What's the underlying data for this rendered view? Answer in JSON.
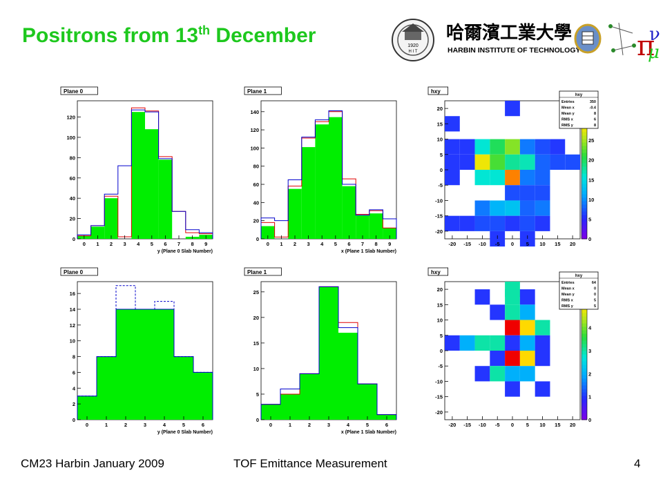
{
  "slide": {
    "title_main": "Positrons from 13",
    "title_sup": "th",
    "title_tail": " December",
    "institution_text": "HARBIN INSTITUTE OF TECHNOLOGY",
    "institution_chinese": "哈爾濱工業大學",
    "seal_year": "1920",
    "seal_text": "H I T",
    "footer_left": "CM23 Harbin January 2009",
    "footer_center": "TOF Emittance Measurement",
    "page_number": "4"
  },
  "colors": {
    "title_green": "#1ec81e",
    "fill_green": "#00ee00",
    "hist_red": "#e00000",
    "hist_blue": "#0000cc"
  },
  "chart_data": [
    {
      "type": "bar",
      "label": "Plane 0",
      "xlabel": "y (Plane 0 Slab Number)",
      "xlim": [
        -0.5,
        9.5
      ],
      "ylim": [
        0,
        136
      ],
      "xticks": [
        "0",
        "1",
        "2",
        "3",
        "4",
        "5",
        "6",
        "7",
        "8",
        "9"
      ],
      "yticks": [
        0,
        20,
        40,
        60,
        80,
        100,
        120
      ],
      "categories": [
        0,
        1,
        2,
        3,
        4,
        5,
        6,
        7,
        8,
        9
      ],
      "series": [
        {
          "style": "fill",
          "values": [
            3,
            12,
            40,
            0,
            125,
            108,
            78,
            0,
            2,
            4
          ]
        },
        {
          "style": "red",
          "values": [
            3,
            13,
            42,
            2,
            129,
            126,
            81,
            27,
            6,
            5
          ]
        },
        {
          "style": "blue",
          "values": [
            4,
            13,
            44,
            72,
            127,
            125,
            79,
            27,
            9,
            6
          ]
        }
      ]
    },
    {
      "type": "bar",
      "label": "Plane 1",
      "xlabel": "x (Plane 1 Slab Number)",
      "xlim": [
        -0.5,
        9.5
      ],
      "ylim": [
        0,
        152
      ],
      "xticks": [
        "0",
        "1",
        "2",
        "3",
        "4",
        "5",
        "6",
        "7",
        "8",
        "9"
      ],
      "yticks": [
        0,
        20,
        40,
        60,
        80,
        100,
        120,
        140
      ],
      "categories": [
        0,
        1,
        2,
        3,
        4,
        5,
        6,
        7,
        8,
        9
      ],
      "series": [
        {
          "style": "fill",
          "values": [
            14,
            0,
            55,
            101,
            126,
            134,
            58,
            26,
            28,
            12
          ]
        },
        {
          "style": "red",
          "values": [
            18,
            2,
            58,
            111,
            129,
            140,
            66,
            27,
            31,
            12
          ]
        },
        {
          "style": "blue",
          "values": [
            23,
            20,
            65,
            112,
            131,
            141,
            60,
            26,
            32,
            22
          ]
        }
      ]
    },
    {
      "type": "heatmap",
      "label": "hxy",
      "stats_title": "hxy",
      "stats": [
        [
          "Entries",
          "350"
        ],
        [
          "Mean x",
          "-0.4"
        ],
        [
          "Mean y",
          "8"
        ],
        [
          "RMS x",
          "6"
        ],
        [
          "RMS y",
          "8"
        ]
      ],
      "xlim": [
        -22.5,
        22.5
      ],
      "ylim": [
        -22.5,
        22.5
      ],
      "xticks": [
        -20,
        -15,
        -10,
        -5,
        0,
        5,
        10,
        15,
        20
      ],
      "yticks": [
        -20,
        -15,
        -10,
        -5,
        0,
        5,
        10,
        15,
        20
      ],
      "zmax": 35,
      "zticks": [
        0,
        5,
        10,
        15,
        20,
        25,
        30,
        35
      ],
      "cells": [
        [
          0,
          20,
          6
        ],
        [
          -20,
          15,
          6
        ],
        [
          -20,
          7.5,
          6
        ],
        [
          -15,
          7.5,
          6
        ],
        [
          -10,
          7.5,
          16
        ],
        [
          -5,
          7.5,
          20
        ],
        [
          0,
          7.5,
          24
        ],
        [
          5,
          7.5,
          9
        ],
        [
          10,
          7.5,
          7
        ],
        [
          15,
          7.5,
          6
        ],
        [
          -20,
          2.5,
          6
        ],
        [
          -15,
          2.5,
          6
        ],
        [
          -10,
          2.5,
          28
        ],
        [
          -5,
          2.5,
          22
        ],
        [
          0,
          2.5,
          18
        ],
        [
          5,
          2.5,
          17
        ],
        [
          10,
          2.5,
          8
        ],
        [
          15,
          2.5,
          7
        ],
        [
          20,
          2.5,
          7
        ],
        [
          -20,
          -2.5,
          6
        ],
        [
          -10,
          -2.5,
          16
        ],
        [
          -5,
          -2.5,
          16
        ],
        [
          0,
          -2.5,
          32
        ],
        [
          5,
          -2.5,
          9
        ],
        [
          10,
          -2.5,
          8
        ],
        [
          0,
          -7.5,
          7
        ],
        [
          5,
          -7.5,
          7
        ],
        [
          10,
          -7.5,
          7
        ],
        [
          -10,
          -12.5,
          9
        ],
        [
          -5,
          -12.5,
          12
        ],
        [
          0,
          -12.5,
          13
        ],
        [
          5,
          -12.5,
          8
        ],
        [
          10,
          -12.5,
          9
        ],
        [
          -20,
          -17.5,
          6
        ],
        [
          -15,
          -17.5,
          6
        ],
        [
          -10,
          -17.5,
          7
        ],
        [
          -5,
          -17.5,
          7
        ],
        [
          0,
          -17.5,
          6
        ],
        [
          5,
          -17.5,
          7
        ],
        [
          10,
          -17.5,
          6
        ],
        [
          -5,
          -22.5,
          6
        ],
        [
          5,
          -22.5,
          6
        ]
      ]
    },
    {
      "type": "bar",
      "label": "Plane 0",
      "xlabel": "y (Plane 0 Slab Number)",
      "xlim": [
        -0.5,
        6.5
      ],
      "ylim": [
        0,
        17.5
      ],
      "xticks": [
        "0",
        "1",
        "2",
        "3",
        "4",
        "5",
        "6"
      ],
      "yticks": [
        0,
        2,
        4,
        6,
        8,
        10,
        12,
        14,
        16
      ],
      "categories": [
        0,
        1,
        2,
        3,
        4,
        5,
        6
      ],
      "series": [
        {
          "style": "fill",
          "values": [
            3,
            8,
            14,
            14,
            14,
            8,
            6
          ]
        },
        {
          "style": "blue",
          "values": [
            3,
            8,
            14,
            14,
            14,
            8,
            6
          ]
        },
        {
          "style": "dash",
          "values": [
            3,
            8,
            17,
            14,
            15,
            8,
            6
          ]
        }
      ]
    },
    {
      "type": "bar",
      "label": "Plane 1",
      "xlabel": "x (Plane 1 Slab Number)",
      "xlim": [
        -0.5,
        6.5
      ],
      "ylim": [
        0,
        27
      ],
      "xticks": [
        "0",
        "1",
        "2",
        "3",
        "4",
        "5",
        "6"
      ],
      "yticks": [
        0,
        5,
        10,
        15,
        20,
        25
      ],
      "categories": [
        0,
        1,
        2,
        3,
        4,
        5,
        6
      ],
      "series": [
        {
          "style": "fill",
          "values": [
            3,
            5,
            9,
            26,
            17,
            7,
            1
          ]
        },
        {
          "style": "red",
          "values": [
            3,
            5,
            9,
            26,
            19,
            7,
            1
          ]
        },
        {
          "style": "blue",
          "values": [
            3,
            6,
            9,
            26,
            18,
            7,
            1
          ]
        }
      ]
    },
    {
      "type": "heatmap",
      "label": "hxy",
      "stats_title": "hxy",
      "stats": [
        [
          "Entries",
          "64"
        ],
        [
          "Mean x",
          "0"
        ],
        [
          "Mean y",
          "0"
        ],
        [
          "RMS x",
          "5"
        ],
        [
          "RMS y",
          "5"
        ]
      ],
      "xlim": [
        -22.5,
        22.5
      ],
      "ylim": [
        -22.5,
        22.5
      ],
      "xticks": [
        -20,
        -15,
        -10,
        -5,
        0,
        5,
        10,
        15,
        20
      ],
      "yticks": [
        -20,
        -15,
        -10,
        -5,
        0,
        5,
        10,
        15,
        20
      ],
      "zmax": 6,
      "zticks": [
        0,
        1,
        2,
        3,
        4,
        5,
        6
      ],
      "cells": [
        [
          0,
          20,
          3
        ],
        [
          -10,
          17.5,
          1
        ],
        [
          0,
          17.5,
          3
        ],
        [
          5,
          17.5,
          1
        ],
        [
          -5,
          12.5,
          1
        ],
        [
          0,
          12.5,
          3
        ],
        [
          5,
          12.5,
          2
        ],
        [
          0,
          7.5,
          6
        ],
        [
          5,
          7.5,
          5
        ],
        [
          10,
          7.5,
          3
        ],
        [
          -20,
          2.5,
          1
        ],
        [
          -15,
          2.5,
          2
        ],
        [
          -10,
          2.5,
          3
        ],
        [
          -5,
          2.5,
          3
        ],
        [
          0,
          2.5,
          1
        ],
        [
          5,
          2.5,
          2
        ],
        [
          10,
          2.5,
          1
        ],
        [
          -5,
          -2.5,
          1
        ],
        [
          0,
          -2.5,
          6
        ],
        [
          5,
          -2.5,
          5
        ],
        [
          10,
          -2.5,
          1
        ],
        [
          -10,
          -7.5,
          1
        ],
        [
          -5,
          -7.5,
          3
        ],
        [
          0,
          -7.5,
          2
        ],
        [
          5,
          -7.5,
          2
        ],
        [
          0,
          -12.5,
          1
        ],
        [
          10,
          -12.5,
          1
        ]
      ]
    }
  ]
}
